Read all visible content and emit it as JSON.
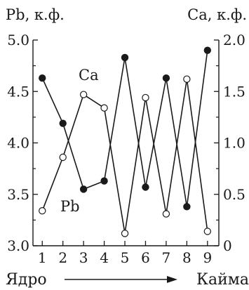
{
  "chart_data": {
    "type": "line",
    "x": [
      1,
      2,
      3,
      4,
      5,
      6,
      7,
      8,
      9
    ],
    "x_ticks": [
      "1",
      "2",
      "3",
      "4",
      "5",
      "6",
      "7",
      "8",
      "9"
    ],
    "left_axis": {
      "title": "Pb, к.ф.",
      "ylim": [
        3.0,
        5.0
      ],
      "ticks": [
        "3.0",
        "3.5",
        "4.0",
        "4.5",
        "5.0"
      ]
    },
    "right_axis": {
      "title": "Ca, к.ф.",
      "ylim": [
        0,
        2.0
      ],
      "ticks": [
        "0",
        "0.5",
        "1.0",
        "1.5",
        "2.0"
      ]
    },
    "series": [
      {
        "name": "Pb",
        "axis": "left",
        "marker": "filled-circle",
        "values": [
          4.63,
          4.19,
          3.55,
          3.63,
          4.83,
          3.57,
          4.63,
          3.38,
          4.9
        ]
      },
      {
        "name": "Ca",
        "axis": "right",
        "marker": "open-circle",
        "values": [
          0.34,
          0.86,
          1.47,
          1.34,
          0.12,
          1.44,
          0.31,
          1.62,
          0.14
        ]
      }
    ],
    "xlabel_left": "Ядро",
    "xlabel_right": "Кайма",
    "grid": false,
    "legend": "inline"
  }
}
